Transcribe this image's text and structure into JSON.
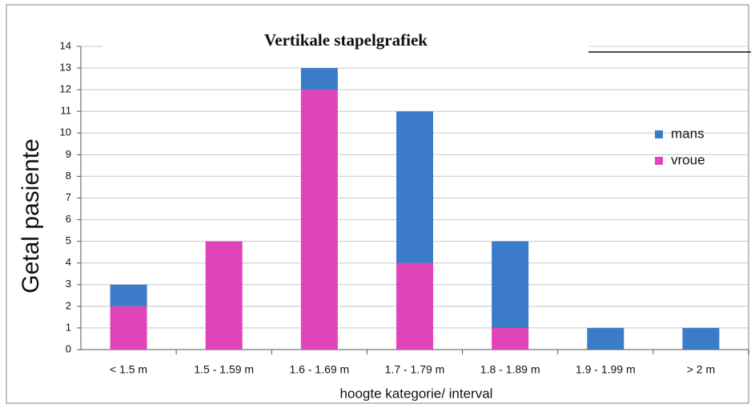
{
  "chart_data": {
    "type": "stacked_bar",
    "title": "Vertikale stapelgrafiek",
    "x_label": "hoogte kategorie/ interval",
    "y_label": "Getal pasiente",
    "categories": [
      "< 1.5 m",
      "1.5 - 1.59 m",
      "1.6 - 1.69 m",
      "1.7 - 1.79 m",
      "1.8 - 1.89 m",
      "1.9 - 1.99 m",
      "> 2 m"
    ],
    "series": [
      {
        "name": "mans",
        "color": "#3b7bc8",
        "values": [
          1,
          0,
          1,
          7,
          4,
          1,
          1
        ]
      },
      {
        "name": "vroue",
        "color": "#e044b8",
        "values": [
          2,
          5,
          12,
          4,
          1,
          0,
          0
        ]
      }
    ],
    "ylim": [
      0,
      14
    ],
    "yticks": [
      0,
      1,
      2,
      3,
      4,
      5,
      6,
      7,
      8,
      9,
      10,
      11,
      12,
      13,
      14
    ],
    "grid": true,
    "legend": "right"
  }
}
